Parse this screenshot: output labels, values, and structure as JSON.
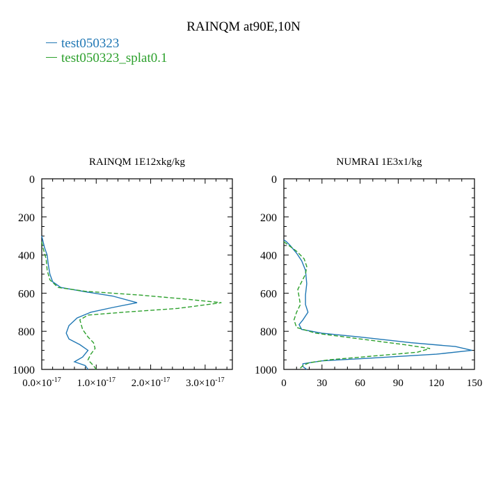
{
  "title": "RAINQM at90E,10N",
  "legend": [
    {
      "label": "test050323",
      "color": "#1f77b4",
      "dash": "solid"
    },
    {
      "label": "test050323_splat0.1",
      "color": "#2ca02c",
      "dash": "dashed"
    }
  ],
  "chart_data": [
    {
      "type": "line",
      "title": "RAINQM  1E12xkg/kg",
      "xlim": [
        0,
        3.5e-17
      ],
      "ylim": [
        1000,
        0
      ],
      "xticks": [
        {
          "value": 0.0,
          "mant": "0.0",
          "exp": "-17"
        },
        {
          "value": 1e-17,
          "mant": "1.0",
          "exp": "-17"
        },
        {
          "value": 2e-17,
          "mant": "2.0",
          "exp": "-17"
        },
        {
          "value": 3e-17,
          "mant": "3.0",
          "exp": "-17"
        }
      ],
      "yticks": [
        0,
        200,
        400,
        600,
        800,
        1000
      ],
      "series": [
        {
          "name": "test050323",
          "color": "#1f77b4",
          "dash": "solid",
          "points": [
            [
              0,
              300
            ],
            [
              5e-19,
              360
            ],
            [
              1e-18,
              400
            ],
            [
              1.2e-18,
              450
            ],
            [
              1.5e-18,
              500
            ],
            [
              2e-18,
              540
            ],
            [
              3.5e-18,
              570
            ],
            [
              5.5e-18,
              580
            ],
            [
              8.5e-18,
              595
            ],
            [
              1.3e-17,
              615
            ],
            [
              1.75e-17,
              650
            ],
            [
              1.3e-17,
              675
            ],
            [
              9e-18,
              700
            ],
            [
              6.5e-18,
              730
            ],
            [
              5e-18,
              770
            ],
            [
              4.5e-18,
              810
            ],
            [
              5e-18,
              840
            ],
            [
              7e-18,
              870
            ],
            [
              8.5e-18,
              900
            ],
            [
              7.5e-18,
              935
            ],
            [
              6e-18,
              960
            ],
            [
              8e-18,
              980
            ],
            [
              8.5e-18,
              1000
            ]
          ]
        },
        {
          "name": "test050323_splat0.1",
          "color": "#2ca02c",
          "dash": "dashed",
          "points": [
            [
              0,
              330
            ],
            [
              2e-19,
              360
            ],
            [
              8e-19,
              420
            ],
            [
              1e-18,
              480
            ],
            [
              1.5e-18,
              530
            ],
            [
              3e-18,
              570
            ],
            [
              8e-18,
              590
            ],
            [
              1.8e-17,
              610
            ],
            [
              2.6e-17,
              630
            ],
            [
              3.3e-17,
              650
            ],
            [
              2.5e-17,
              680
            ],
            [
              1.5e-17,
              700
            ],
            [
              8.5e-18,
              715
            ],
            [
              7e-18,
              740
            ],
            [
              7.5e-18,
              790
            ],
            [
              8.5e-18,
              830
            ],
            [
              9.5e-18,
              860
            ],
            [
              9.8e-18,
              890
            ],
            [
              9e-18,
              920
            ],
            [
              8.5e-18,
              950
            ],
            [
              9.5e-18,
              980
            ],
            [
              1e-17,
              1000
            ]
          ]
        }
      ]
    },
    {
      "type": "line",
      "title": "NUMRAI  1E3x1/kg",
      "xlim": [
        0,
        150
      ],
      "ylim": [
        1000,
        0
      ],
      "xticks": [
        {
          "value": 0,
          "label": "0"
        },
        {
          "value": 30,
          "label": "30"
        },
        {
          "value": 60,
          "label": "60"
        },
        {
          "value": 90,
          "label": "90"
        },
        {
          "value": 120,
          "label": "120"
        },
        {
          "value": 150,
          "label": "150"
        }
      ],
      "yticks": [
        0,
        200,
        400,
        600,
        800,
        1000
      ],
      "series": [
        {
          "name": "test050323",
          "color": "#1f77b4",
          "dash": "solid",
          "points": [
            [
              0,
              320
            ],
            [
              2,
              330
            ],
            [
              5,
              350
            ],
            [
              10,
              390
            ],
            [
              14,
              430
            ],
            [
              17,
              480
            ],
            [
              18,
              550
            ],
            [
              17,
              610
            ],
            [
              17,
              660
            ],
            [
              19,
              700
            ],
            [
              15,
              740
            ],
            [
              12,
              765
            ],
            [
              14,
              790
            ],
            [
              30,
              810
            ],
            [
              60,
              830
            ],
            [
              100,
              860
            ],
            [
              135,
              880
            ],
            [
              148,
              900
            ],
            [
              120,
              920
            ],
            [
              70,
              940
            ],
            [
              30,
              955
            ],
            [
              15,
              970
            ],
            [
              15,
              985
            ],
            [
              18,
              1000
            ]
          ]
        },
        {
          "name": "test050323_splat0.1",
          "color": "#2ca02c",
          "dash": "dashed",
          "points": [
            [
              0,
              330
            ],
            [
              4,
              350
            ],
            [
              10,
              380
            ],
            [
              16,
              420
            ],
            [
              18,
              460
            ],
            [
              17,
              500
            ],
            [
              14,
              540
            ],
            [
              11,
              580
            ],
            [
              12,
              620
            ],
            [
              13,
              660
            ],
            [
              10,
              700
            ],
            [
              8,
              740
            ],
            [
              10,
              780
            ],
            [
              25,
              810
            ],
            [
              60,
              840
            ],
            [
              95,
              870
            ],
            [
              115,
              890
            ],
            [
              105,
              910
            ],
            [
              70,
              930
            ],
            [
              35,
              950
            ],
            [
              20,
              965
            ],
            [
              15,
              980
            ],
            [
              12,
              1000
            ]
          ]
        }
      ]
    }
  ]
}
